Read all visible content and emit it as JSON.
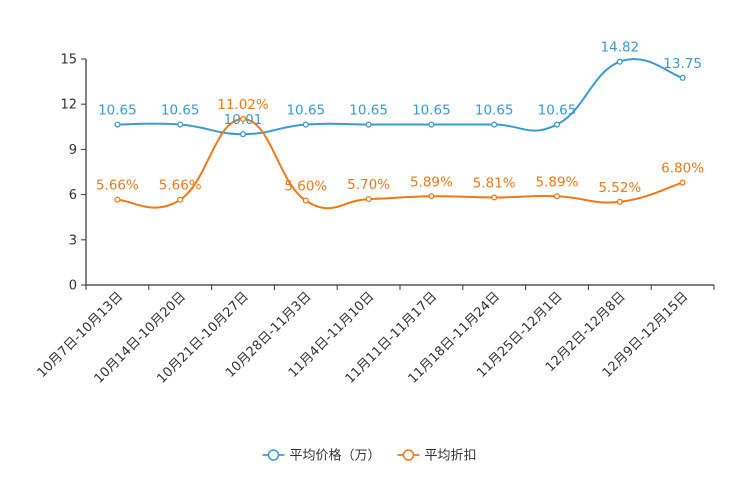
{
  "chart_data": {
    "type": "line",
    "title": "",
    "xlabel": "",
    "ylabel": "",
    "ylim": [
      0,
      15
    ],
    "yticks": [
      0,
      3,
      6,
      9,
      12,
      15
    ],
    "grid": false,
    "legend_position": "bottom-center",
    "categories": [
      "10月7日-10月13日",
      "10月14日-10月20日",
      "10月21日-10月27日",
      "10月28日-11月3日",
      "11月4日-11月10日",
      "11月11日-11月17日",
      "11月18日-11月24日",
      "11月25日-12月1日",
      "12月2日-12月8日",
      "12月9日-12月15日"
    ],
    "series": [
      {
        "name": "平均价格（万）",
        "color": "#3a9bd0",
        "values": [
          10.65,
          10.65,
          10.01,
          10.65,
          10.65,
          10.65,
          10.65,
          10.65,
          14.82,
          13.75
        ],
        "labels": [
          "10.65",
          "10.65",
          "10.01",
          "10.65",
          "10.65",
          "10.65",
          "10.65",
          "10.65",
          "14.82",
          "13.75"
        ]
      },
      {
        "name": "平均折扣",
        "color": "#f07a18",
        "values": [
          5.66,
          5.66,
          11.02,
          5.6,
          5.7,
          5.89,
          5.81,
          5.89,
          5.52,
          6.8
        ],
        "labels": [
          "5.66%",
          "5.66%",
          "11.02%",
          "5.60%",
          "5.70%",
          "5.89%",
          "5.81%",
          "5.89%",
          "5.52%",
          "6.80%"
        ]
      }
    ]
  }
}
